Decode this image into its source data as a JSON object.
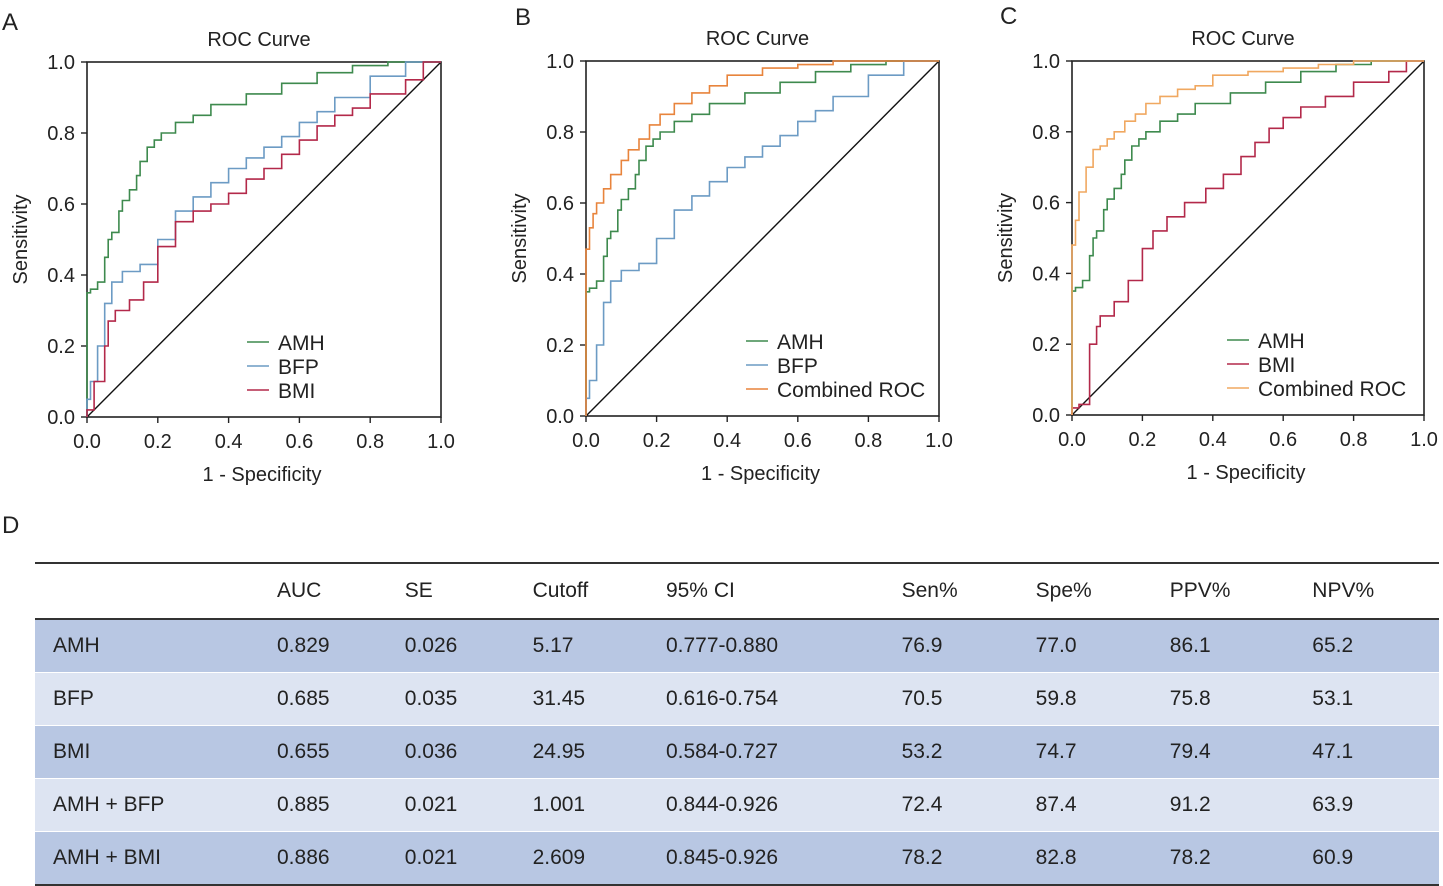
{
  "panel_labels": {
    "a": "A",
    "b": "B",
    "c": "C",
    "d": "D"
  },
  "colors": {
    "AMH": "#3e8a4e",
    "BFP": "#6c9bc4",
    "BMI": "#b3294a",
    "Combined": "#e8843c",
    "Combined_C": "#f0a860",
    "diagonal": "#111111",
    "row_dark": "#b8c7e3",
    "row_light": "#dde4f2"
  },
  "chart_data": [
    {
      "type": "line",
      "title": "ROC Curve",
      "xlabel": "1 - Specificity",
      "ylabel": "Sensitivity",
      "xlim": [
        0,
        1
      ],
      "ylim": [
        0,
        1
      ],
      "ticks": [
        "0.0",
        "0.2",
        "0.4",
        "0.6",
        "0.8",
        "1.0"
      ],
      "legend_position": "bottom-right",
      "series": [
        {
          "name": "AMH",
          "color_key": "AMH",
          "points": [
            [
              0,
              0
            ],
            [
              0,
              0.22
            ],
            [
              0.01,
              0.35
            ],
            [
              0.03,
              0.36
            ],
            [
              0.05,
              0.38
            ],
            [
              0.06,
              0.45
            ],
            [
              0.07,
              0.5
            ],
            [
              0.09,
              0.52
            ],
            [
              0.1,
              0.58
            ],
            [
              0.12,
              0.61
            ],
            [
              0.14,
              0.64
            ],
            [
              0.15,
              0.68
            ],
            [
              0.17,
              0.72
            ],
            [
              0.19,
              0.76
            ],
            [
              0.21,
              0.78
            ],
            [
              0.25,
              0.8
            ],
            [
              0.3,
              0.83
            ],
            [
              0.35,
              0.85
            ],
            [
              0.45,
              0.88
            ],
            [
              0.55,
              0.91
            ],
            [
              0.65,
              0.94
            ],
            [
              0.75,
              0.97
            ],
            [
              0.85,
              0.99
            ],
            [
              0.95,
              1.0
            ],
            [
              1,
              1
            ]
          ]
        },
        {
          "name": "BFP",
          "color_key": "BFP",
          "points": [
            [
              0,
              0
            ],
            [
              0.01,
              0.05
            ],
            [
              0.03,
              0.1
            ],
            [
              0.05,
              0.2
            ],
            [
              0.07,
              0.32
            ],
            [
              0.1,
              0.38
            ],
            [
              0.15,
              0.41
            ],
            [
              0.2,
              0.43
            ],
            [
              0.25,
              0.5
            ],
            [
              0.3,
              0.58
            ],
            [
              0.35,
              0.62
            ],
            [
              0.4,
              0.66
            ],
            [
              0.45,
              0.7
            ],
            [
              0.5,
              0.73
            ],
            [
              0.55,
              0.76
            ],
            [
              0.6,
              0.79
            ],
            [
              0.65,
              0.83
            ],
            [
              0.7,
              0.86
            ],
            [
              0.8,
              0.9
            ],
            [
              0.9,
              0.96
            ],
            [
              1,
              1
            ]
          ]
        },
        {
          "name": "BMI",
          "color_key": "BMI",
          "points": [
            [
              0,
              0
            ],
            [
              0.02,
              0.02
            ],
            [
              0.05,
              0.1
            ],
            [
              0.06,
              0.2
            ],
            [
              0.08,
              0.27
            ],
            [
              0.12,
              0.3
            ],
            [
              0.16,
              0.33
            ],
            [
              0.2,
              0.38
            ],
            [
              0.25,
              0.48
            ],
            [
              0.3,
              0.55
            ],
            [
              0.35,
              0.58
            ],
            [
              0.4,
              0.6
            ],
            [
              0.45,
              0.63
            ],
            [
              0.5,
              0.67
            ],
            [
              0.55,
              0.7
            ],
            [
              0.6,
              0.74
            ],
            [
              0.65,
              0.78
            ],
            [
              0.7,
              0.82
            ],
            [
              0.75,
              0.85
            ],
            [
              0.8,
              0.87
            ],
            [
              0.9,
              0.91
            ],
            [
              0.95,
              0.95
            ],
            [
              1,
              1
            ]
          ]
        }
      ]
    },
    {
      "type": "line",
      "title": "ROC Curve",
      "xlabel": "1 - Specificity",
      "ylabel": "Sensitivity",
      "xlim": [
        0,
        1
      ],
      "ylim": [
        0,
        1
      ],
      "ticks": [
        "0.0",
        "0.2",
        "0.4",
        "0.6",
        "0.8",
        "1.0"
      ],
      "legend_position": "bottom-right",
      "series": [
        {
          "name": "AMH",
          "color_key": "AMH",
          "points": [
            [
              0,
              0
            ],
            [
              0,
              0.22
            ],
            [
              0.01,
              0.35
            ],
            [
              0.03,
              0.36
            ],
            [
              0.05,
              0.38
            ],
            [
              0.06,
              0.45
            ],
            [
              0.07,
              0.5
            ],
            [
              0.09,
              0.52
            ],
            [
              0.1,
              0.58
            ],
            [
              0.12,
              0.61
            ],
            [
              0.14,
              0.64
            ],
            [
              0.15,
              0.68
            ],
            [
              0.17,
              0.72
            ],
            [
              0.19,
              0.76
            ],
            [
              0.21,
              0.78
            ],
            [
              0.25,
              0.8
            ],
            [
              0.3,
              0.83
            ],
            [
              0.35,
              0.85
            ],
            [
              0.45,
              0.88
            ],
            [
              0.55,
              0.91
            ],
            [
              0.65,
              0.94
            ],
            [
              0.75,
              0.97
            ],
            [
              0.85,
              0.99
            ],
            [
              0.95,
              1.0
            ],
            [
              1,
              1
            ]
          ]
        },
        {
          "name": "BFP",
          "color_key": "BFP",
          "points": [
            [
              0,
              0
            ],
            [
              0.01,
              0.05
            ],
            [
              0.03,
              0.1
            ],
            [
              0.05,
              0.2
            ],
            [
              0.07,
              0.32
            ],
            [
              0.1,
              0.38
            ],
            [
              0.15,
              0.41
            ],
            [
              0.2,
              0.43
            ],
            [
              0.25,
              0.5
            ],
            [
              0.3,
              0.58
            ],
            [
              0.35,
              0.62
            ],
            [
              0.4,
              0.66
            ],
            [
              0.45,
              0.7
            ],
            [
              0.5,
              0.73
            ],
            [
              0.55,
              0.76
            ],
            [
              0.6,
              0.79
            ],
            [
              0.65,
              0.83
            ],
            [
              0.7,
              0.86
            ],
            [
              0.8,
              0.9
            ],
            [
              0.9,
              0.96
            ],
            [
              1,
              1
            ]
          ]
        },
        {
          "name": "Combined ROC",
          "color_key": "Combined",
          "points": [
            [
              0,
              0
            ],
            [
              0,
              0.28
            ],
            [
              0.01,
              0.47
            ],
            [
              0.02,
              0.53
            ],
            [
              0.03,
              0.57
            ],
            [
              0.05,
              0.6
            ],
            [
              0.07,
              0.64
            ],
            [
              0.1,
              0.68
            ],
            [
              0.12,
              0.72
            ],
            [
              0.15,
              0.75
            ],
            [
              0.18,
              0.78
            ],
            [
              0.21,
              0.82
            ],
            [
              0.25,
              0.85
            ],
            [
              0.3,
              0.88
            ],
            [
              0.35,
              0.91
            ],
            [
              0.4,
              0.93
            ],
            [
              0.5,
              0.96
            ],
            [
              0.6,
              0.98
            ],
            [
              0.7,
              0.99
            ],
            [
              0.8,
              1.0
            ],
            [
              1,
              1
            ]
          ]
        }
      ]
    },
    {
      "type": "line",
      "title": "ROC Curve",
      "xlabel": "1 - Specificity",
      "ylabel": "Sensitivity",
      "xlim": [
        0,
        1
      ],
      "ylim": [
        0,
        1
      ],
      "ticks": [
        "0.0",
        "0.2",
        "0.4",
        "0.6",
        "0.8",
        "1.0"
      ],
      "legend_position": "bottom-right",
      "series": [
        {
          "name": "AMH",
          "color_key": "AMH",
          "points": [
            [
              0,
              0
            ],
            [
              0,
              0.22
            ],
            [
              0.01,
              0.35
            ],
            [
              0.03,
              0.36
            ],
            [
              0.05,
              0.38
            ],
            [
              0.06,
              0.45
            ],
            [
              0.07,
              0.5
            ],
            [
              0.09,
              0.52
            ],
            [
              0.1,
              0.58
            ],
            [
              0.12,
              0.61
            ],
            [
              0.14,
              0.64
            ],
            [
              0.15,
              0.68
            ],
            [
              0.17,
              0.72
            ],
            [
              0.19,
              0.76
            ],
            [
              0.21,
              0.78
            ],
            [
              0.25,
              0.8
            ],
            [
              0.3,
              0.83
            ],
            [
              0.35,
              0.85
            ],
            [
              0.45,
              0.88
            ],
            [
              0.55,
              0.91
            ],
            [
              0.65,
              0.94
            ],
            [
              0.75,
              0.97
            ],
            [
              0.85,
              0.99
            ],
            [
              0.95,
              1.0
            ],
            [
              1,
              1
            ]
          ]
        },
        {
          "name": "BMI",
          "color_key": "BMI",
          "points": [
            [
              0,
              0
            ],
            [
              0.02,
              0.02
            ],
            [
              0.05,
              0.03
            ],
            [
              0.07,
              0.2
            ],
            [
              0.08,
              0.25
            ],
            [
              0.12,
              0.28
            ],
            [
              0.16,
              0.32
            ],
            [
              0.2,
              0.38
            ],
            [
              0.23,
              0.47
            ],
            [
              0.27,
              0.52
            ],
            [
              0.32,
              0.56
            ],
            [
              0.38,
              0.6
            ],
            [
              0.43,
              0.64
            ],
            [
              0.48,
              0.68
            ],
            [
              0.52,
              0.73
            ],
            [
              0.56,
              0.77
            ],
            [
              0.6,
              0.81
            ],
            [
              0.65,
              0.84
            ],
            [
              0.72,
              0.87
            ],
            [
              0.8,
              0.9
            ],
            [
              0.9,
              0.94
            ],
            [
              0.95,
              0.97
            ],
            [
              1,
              1
            ]
          ]
        },
        {
          "name": "Combined ROC",
          "color_key": "Combined_C",
          "points": [
            [
              0,
              0
            ],
            [
              0,
              0.22
            ],
            [
              0.01,
              0.48
            ],
            [
              0.02,
              0.55
            ],
            [
              0.04,
              0.63
            ],
            [
              0.06,
              0.7
            ],
            [
              0.08,
              0.75
            ],
            [
              0.1,
              0.76
            ],
            [
              0.12,
              0.78
            ],
            [
              0.15,
              0.8
            ],
            [
              0.18,
              0.83
            ],
            [
              0.21,
              0.85
            ],
            [
              0.25,
              0.88
            ],
            [
              0.3,
              0.9
            ],
            [
              0.35,
              0.92
            ],
            [
              0.4,
              0.93
            ],
            [
              0.5,
              0.96
            ],
            [
              0.6,
              0.97
            ],
            [
              0.7,
              0.98
            ],
            [
              0.8,
              0.99
            ],
            [
              0.9,
              1.0
            ],
            [
              1,
              1
            ]
          ]
        }
      ]
    }
  ],
  "table": {
    "headers": [
      "",
      "AUC",
      "SE",
      "Cutoff",
      "95% CI",
      "Sen%",
      "Spe%",
      "PPV%",
      "NPV%"
    ],
    "rows": [
      [
        "AMH",
        "0.829",
        "0.026",
        "5.17",
        "0.777-0.880",
        "76.9",
        "77.0",
        "86.1",
        "65.2"
      ],
      [
        "BFP",
        "0.685",
        "0.035",
        "31.45",
        "0.616-0.754",
        "70.5",
        "59.8",
        "75.8",
        "53.1"
      ],
      [
        "BMI",
        "0.655",
        "0.036",
        "24.95",
        "0.584-0.727",
        "53.2",
        "74.7",
        "79.4",
        "47.1"
      ],
      [
        "AMH + BFP",
        "0.885",
        "0.021",
        "1.001",
        "0.844-0.926",
        "72.4",
        "87.4",
        "91.2",
        "63.9"
      ],
      [
        "AMH + BMI",
        "0.886",
        "0.021",
        "2.609",
        "0.845-0.926",
        "78.2",
        "82.8",
        "78.2",
        "60.9"
      ]
    ]
  }
}
